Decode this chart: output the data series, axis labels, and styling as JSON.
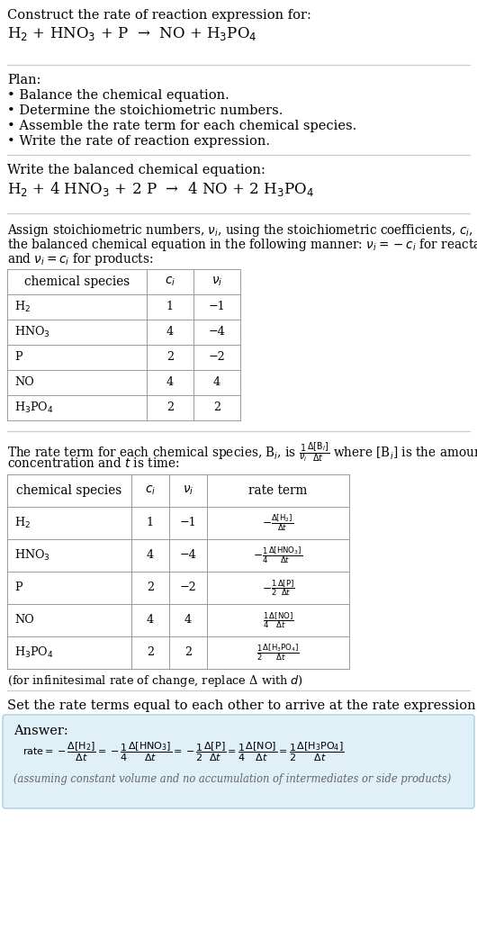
{
  "bg_color": "#ffffff",
  "text_color": "#000000",
  "gray_text": "#666666",
  "light_blue_bg": "#dff0f7",
  "table_border": "#999999",
  "divider_color": "#cccccc",
  "title_line1": "Construct the rate of reaction expression for:",
  "title_line2": "H$_2$ + HNO$_3$ + P  →  NO + H$_3$PO$_4$",
  "plan_header": "Plan:",
  "plan_items": [
    "• Balance the chemical equation.",
    "• Determine the stoichiometric numbers.",
    "• Assemble the rate term for each chemical species.",
    "• Write the rate of reaction expression."
  ],
  "balanced_header": "Write the balanced chemical equation:",
  "balanced_eq": "H$_2$ + 4 HNO$_3$ + 2 P  →  4 NO + 2 H$_3$PO$_4$",
  "stoich_intro_L1": "Assign stoichiometric numbers, $\\nu_i$, using the stoichiometric coefficients, $c_i$, from",
  "stoich_intro_L2": "the balanced chemical equation in the following manner: $\\nu_i = -c_i$ for reactants",
  "stoich_intro_L3": "and $\\nu_i = c_i$ for products:",
  "table1_headers": [
    "chemical species",
    "$c_i$",
    "$\\nu_i$"
  ],
  "table1_rows": [
    [
      "H$_2$",
      "1",
      "−1"
    ],
    [
      "HNO$_3$",
      "4",
      "−4"
    ],
    [
      "P",
      "2",
      "−2"
    ],
    [
      "NO",
      "4",
      "4"
    ],
    [
      "H$_3$PO$_4$",
      "2",
      "2"
    ]
  ],
  "rate_intro_L1": "The rate term for each chemical species, B$_i$, is $\\frac{1}{\\nu_i}\\frac{\\Delta[\\mathrm{B}_i]}{\\Delta t}$ where [B$_i$] is the amount",
  "rate_intro_L2": "concentration and $t$ is time:",
  "table2_headers": [
    "chemical species",
    "$c_i$",
    "$\\nu_i$",
    "rate term"
  ],
  "table2_rows": [
    [
      "H$_2$",
      "1",
      "−1",
      "$-\\frac{\\Delta[\\mathrm{H_2}]}{\\Delta t}$"
    ],
    [
      "HNO$_3$",
      "4",
      "−4",
      "$-\\frac{1}{4}\\frac{\\Delta[\\mathrm{HNO_3}]}{\\Delta t}$"
    ],
    [
      "P",
      "2",
      "−2",
      "$-\\frac{1}{2}\\frac{\\Delta[\\mathrm{P}]}{\\Delta t}$"
    ],
    [
      "NO",
      "4",
      "4",
      "$\\frac{1}{4}\\frac{\\Delta[\\mathrm{NO}]}{\\Delta t}$"
    ],
    [
      "H$_3$PO$_4$",
      "2",
      "2",
      "$\\frac{1}{2}\\frac{\\Delta[\\mathrm{H_3PO_4}]}{\\Delta t}$"
    ]
  ],
  "infinitesimal_note": "(for infinitesimal rate of change, replace Δ with $d$)",
  "set_equal_text": "Set the rate terms equal to each other to arrive at the rate expression:",
  "answer_label": "Answer:",
  "answer_eq": "$\\mathrm{rate} = -\\dfrac{\\Delta[\\mathrm{H_2}]}{\\Delta t} = -\\dfrac{1}{4}\\dfrac{\\Delta[\\mathrm{HNO_3}]}{\\Delta t} = -\\dfrac{1}{2}\\dfrac{\\Delta[\\mathrm{P}]}{\\Delta t} = \\dfrac{1}{4}\\dfrac{\\Delta[\\mathrm{NO}]}{\\Delta t} = \\dfrac{1}{2}\\dfrac{\\Delta[\\mathrm{H_3PO_4}]}{\\Delta t}$",
  "answer_note": "(assuming constant volume and no accumulation of intermediates or side products)"
}
